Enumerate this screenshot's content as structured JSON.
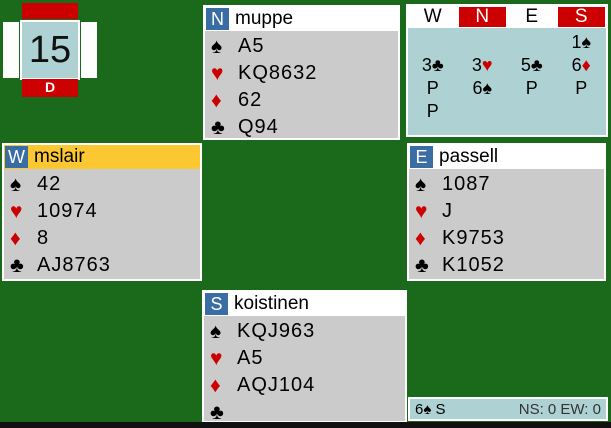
{
  "colors": {
    "table_green": "#1b6a1b",
    "vul_red": "#cc0000",
    "active_yellow": "#fcc832",
    "seat_blue": "#3a6da4",
    "panel_gray": "#cbcbcb",
    "light_blue": "#aed2d3"
  },
  "board": {
    "number": "15",
    "dealer_label": "D",
    "ns_vulnerable": true,
    "ew_vulnerable": false
  },
  "hands": [
    {
      "id": "north",
      "seat": "N",
      "name": "muppe",
      "active": false,
      "suits": [
        [
          "♠",
          "A5"
        ],
        [
          "♥",
          "KQ8632"
        ],
        [
          "♦",
          "62"
        ],
        [
          "♣",
          "Q94"
        ]
      ]
    },
    {
      "id": "west",
      "seat": "W",
      "name": "mslair",
      "active": true,
      "suits": [
        [
          "♠",
          "42"
        ],
        [
          "♥",
          "10974"
        ],
        [
          "♦",
          "8"
        ],
        [
          "♣",
          "AJ8763"
        ]
      ]
    },
    {
      "id": "east",
      "seat": "E",
      "name": "passell",
      "active": false,
      "suits": [
        [
          "♠",
          "1087"
        ],
        [
          "♥",
          "J"
        ],
        [
          "♦",
          "K9753"
        ],
        [
          "♣",
          "K1052"
        ]
      ]
    },
    {
      "id": "south",
      "seat": "S",
      "name": "koistinen",
      "active": false,
      "suits": [
        [
          "♠",
          "KQJ963"
        ],
        [
          "♥",
          "A5"
        ],
        [
          "♦",
          "AQJ104"
        ],
        [
          "♣",
          ""
        ]
      ]
    }
  ],
  "auction": {
    "columns": [
      "W",
      "N",
      "E",
      "S"
    ],
    "vulnerable_columns": [
      "N",
      "S"
    ],
    "rows": [
      [
        "",
        "",
        "",
        "1♠"
      ],
      [
        "3♣",
        "3♥",
        "5♣",
        "6♦"
      ],
      [
        "P",
        "6♠",
        "P",
        "P"
      ],
      [
        "P",
        "",
        "",
        ""
      ]
    ]
  },
  "status": {
    "contract": "6♠ S",
    "score": "NS: 0 EW: 0"
  }
}
